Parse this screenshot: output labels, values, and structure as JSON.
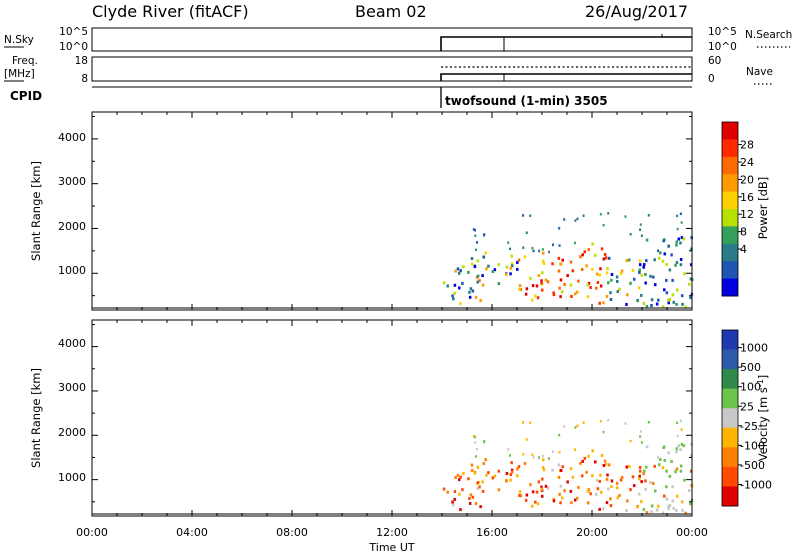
{
  "header": {
    "station": "Clyde River (fitACF)",
    "beam": "Beam 02",
    "date": "26/Aug/2017"
  },
  "top_panels": {
    "nsky_label": "N.Sky",
    "nsky_ticks": [
      "10^5",
      "10^0"
    ],
    "nsearch_label": "N.Search",
    "nsearch_ticks": [
      "10^5",
      "10^0"
    ],
    "freq_label_1": "Freq.",
    "freq_label_2": "[MHz]",
    "freq_ticks": [
      "18",
      "8"
    ],
    "nave_label": "Nave",
    "nave_ticks": [
      "60",
      "0"
    ],
    "cpid_label": "CPID",
    "cpid_text": "twofsound (1-min) 3505"
  },
  "chart_data": [
    {
      "type": "heatmap",
      "panel": "power",
      "ylabel": "Slant Range [km]",
      "yticks": [
        "4000",
        "3000",
        "2000",
        "1000"
      ],
      "ylim": [
        180,
        4600
      ],
      "xlim_hours": [
        0,
        24
      ],
      "colorbar": {
        "label": "Power [dB]",
        "ticks": [
          "28",
          "24",
          "20",
          "16",
          "12",
          "8",
          "4"
        ],
        "colors": [
          "#e00000",
          "#ff2a00",
          "#ff6a00",
          "#ff9a00",
          "#ffd000",
          "#b8e000",
          "#34a05a",
          "#2a7a8a",
          "#1f55b0",
          "#0000e0"
        ]
      },
      "data_extent_hours": [
        14.0,
        24.0
      ],
      "data_extent_range_km": [
        250,
        2400
      ]
    },
    {
      "type": "heatmap",
      "panel": "velocity",
      "ylabel": "Slant Range [km]",
      "yticks": [
        "4000",
        "3000",
        "2000",
        "1000"
      ],
      "ylim": [
        180,
        4600
      ],
      "xlim_hours": [
        0,
        24
      ],
      "xticks": [
        "00:00",
        "04:00",
        "08:00",
        "12:00",
        "16:00",
        "20:00",
        "00:00"
      ],
      "xlabel": "Time UT",
      "colorbar": {
        "label": "Velocity [m s",
        "label_sup": "-1",
        "label_end": "]",
        "ticks": [
          "1000",
          "500",
          "100",
          "25",
          "-25",
          "-100",
          "-500",
          "-1000"
        ],
        "colors": [
          "#1f3ab0",
          "#2a5aa8",
          "#2f8a4a",
          "#6cc44a",
          "#c8c8c8",
          "#ffb400",
          "#ff8000",
          "#ff4a00",
          "#e00000"
        ]
      },
      "data_extent_hours": [
        14.0,
        24.0
      ],
      "data_extent_range_km": [
        250,
        2400
      ]
    }
  ]
}
